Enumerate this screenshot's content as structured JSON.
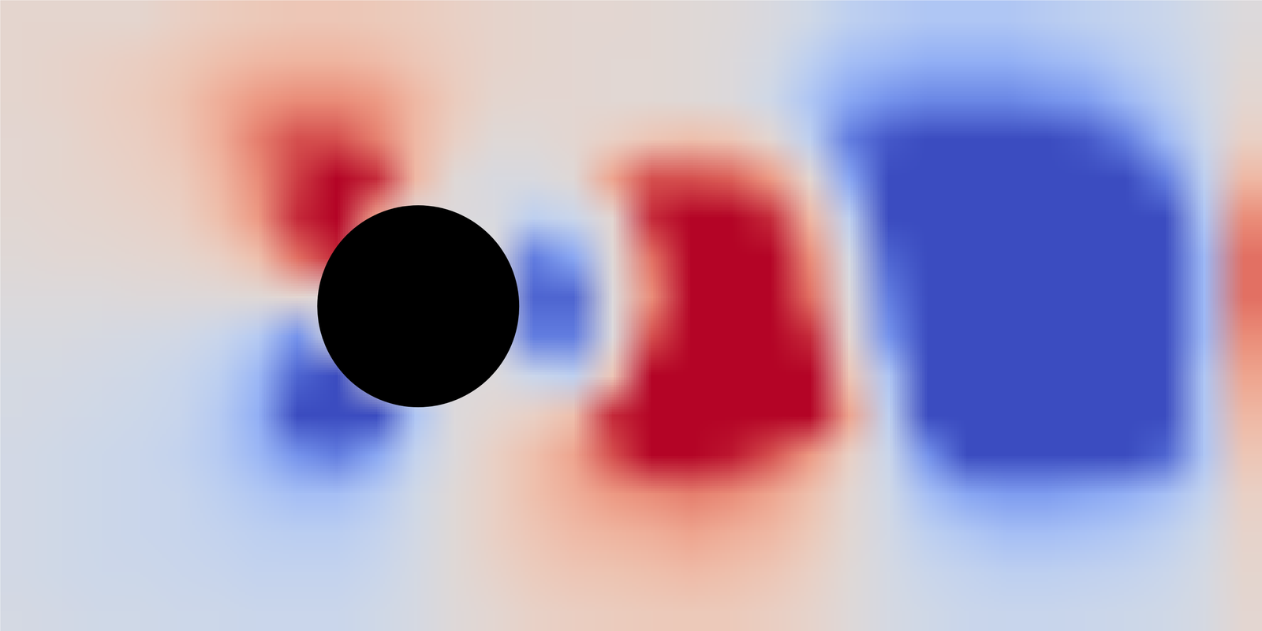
{
  "chart_data": {
    "type": "heatmap",
    "tick_labels": false,
    "xlim": [
      0,
      8
    ],
    "ylim": [
      0,
      4
    ],
    "colors": [
      "#3b4cc0",
      "#7b9ff9",
      "#c0d4f5",
      "#dddddd",
      "#f2cbb7",
      "#ee8468",
      "#b40426"
    ],
    "color_range": [
      -1,
      1
    ],
    "cylinder": {
      "x": 2.65,
      "y": 2.06,
      "radius": 0.64,
      "color": "#000000"
    },
    "cells": [
      [
        0.12,
        0.12,
        0.12,
        0.12,
        0.2,
        0.25,
        0.28,
        0.3,
        0.3,
        0.28,
        0.25,
        0.2,
        0.15,
        0.12,
        0.1,
        0.1,
        0.08,
        0.05,
        0.02,
        -0.05,
        -0.15,
        -0.3,
        -0.35,
        -0.4,
        -0.4,
        -0.4,
        -0.35,
        -0.3,
        -0.25,
        -0.2,
        -0.1,
        0
      ],
      [
        0.12,
        0.15,
        0.18,
        0.22,
        0.28,
        0.35,
        0.4,
        0.42,
        0.42,
        0.38,
        0.3,
        0.22,
        0.15,
        0.12,
        0.1,
        0.08,
        0.08,
        0.05,
        0,
        -0.1,
        -0.3,
        -0.45,
        -0.5,
        -0.55,
        -0.55,
        -0.55,
        -0.5,
        -0.45,
        -0.35,
        -0.25,
        -0.12,
        0.05
      ],
      [
        0.12,
        0.15,
        0.2,
        0.25,
        0.32,
        0.45,
        0.55,
        0.6,
        0.6,
        0.55,
        0.4,
        0.25,
        0.12,
        0.1,
        0.1,
        0.08,
        0.08,
        0.05,
        0,
        -0.15,
        -0.4,
        -0.6,
        -0.7,
        -0.75,
        -0.75,
        -0.75,
        -0.7,
        -0.65,
        -0.5,
        -0.35,
        -0.15,
        0.1
      ],
      [
        0.1,
        0.12,
        0.18,
        0.22,
        0.3,
        0.45,
        0.65,
        0.8,
        0.8,
        0.65,
        0.4,
        0.2,
        0.05,
        0.05,
        0.1,
        0.2,
        0.3,
        0.35,
        0.3,
        0.1,
        -0.3,
        -0.8,
        -0.95,
        -1,
        -1,
        -1,
        -1,
        -0.95,
        -0.8,
        -0.5,
        -0.2,
        0.2
      ],
      [
        0.1,
        0.12,
        0.15,
        0.2,
        0.25,
        0.4,
        0.6,
        0.85,
        1.1,
        0.9,
        0.4,
        0.05,
        -0.05,
        -0.05,
        0.05,
        0.5,
        0.8,
        0.8,
        0.75,
        0.55,
        0.1,
        -0.6,
        -1,
        -1.1,
        -1.1,
        -1.1,
        -1.1,
        -1.1,
        -1,
        -0.8,
        -0.3,
        0.4
      ],
      [
        0.08,
        0.1,
        0.12,
        0.15,
        0.2,
        0.35,
        0.55,
        0.9,
        1.2,
        0.5,
        0,
        0,
        -0.05,
        -0.3,
        -0.2,
        0.1,
        0.9,
        1.2,
        1.2,
        0.9,
        0.4,
        -0.3,
        -1,
        -1.1,
        -1.2,
        -1.2,
        -1.2,
        -1.1,
        -1.1,
        -1,
        -0.4,
        0.6
      ],
      [
        0.05,
        0.07,
        0.08,
        0.1,
        0.12,
        0.2,
        0.35,
        0.7,
        0.9,
        0,
        0,
        0,
        0,
        -0.8,
        -0.6,
        0.05,
        0.7,
        1.2,
        1.2,
        1.1,
        0.6,
        -0.1,
        -0.9,
        -1.2,
        -1.2,
        -1.2,
        -1.2,
        -1.2,
        -1.2,
        -1.1,
        -0.5,
        0.7
      ],
      [
        0,
        0,
        0,
        0.02,
        0.02,
        0.03,
        0.05,
        0.1,
        0,
        0,
        0,
        0,
        0,
        -0.9,
        -0.9,
        0,
        0.6,
        1.2,
        1.2,
        1.2,
        0.7,
        0,
        -0.8,
        -1.2,
        -1.2,
        -1.2,
        -1.2,
        -1.2,
        -1.2,
        -1.1,
        -0.5,
        0.7
      ],
      [
        -0.05,
        -0.05,
        -0.07,
        -0.1,
        -0.12,
        -0.2,
        -0.35,
        -0.7,
        0,
        0,
        0,
        0,
        0,
        -0.8,
        -0.8,
        0,
        0.8,
        1.2,
        1.2,
        1.2,
        0.9,
        0.1,
        -0.7,
        -1.2,
        -1.2,
        -1.2,
        -1.2,
        -1.2,
        -1.2,
        -1.1,
        -0.5,
        0.6
      ],
      [
        -0.08,
        -0.1,
        -0.12,
        -0.15,
        -0.2,
        -0.3,
        -0.5,
        -0.9,
        -1,
        0,
        0,
        0,
        0,
        -0.2,
        -0.3,
        0.3,
        1,
        1.2,
        1.2,
        1.2,
        1.2,
        0.3,
        -0.4,
        -1.2,
        -1.2,
        -1.2,
        -1.2,
        -1.2,
        -1.2,
        -1.1,
        -0.4,
        0.5
      ],
      [
        -0.1,
        -0.12,
        -0.15,
        -0.18,
        -0.22,
        -0.35,
        -0.55,
        -1,
        -1.1,
        -1,
        -0.4,
        0,
        0.1,
        0.2,
        0.35,
        0.9,
        1.2,
        1.2,
        1.2,
        1.2,
        1.2,
        0.5,
        -0.3,
        -1.1,
        -1.2,
        -1.2,
        -1.2,
        -1.2,
        -1.2,
        -1,
        -0.4,
        0.4
      ],
      [
        -0.12,
        -0.15,
        -0.18,
        -0.2,
        -0.25,
        -0.35,
        -0.5,
        -0.7,
        -0.8,
        -0.6,
        -0.25,
        0,
        0.2,
        0.35,
        0.5,
        0.8,
        1,
        1.05,
        0.95,
        0.8,
        0.55,
        0.2,
        -0.2,
        -0.7,
        -1,
        -1.1,
        -1.1,
        -1.1,
        -1,
        -0.9,
        -0.4,
        0.3
      ],
      [
        -0.12,
        -0.15,
        -0.18,
        -0.2,
        -0.22,
        -0.3,
        -0.38,
        -0.45,
        -0.45,
        -0.35,
        -0.15,
        0.05,
        0.2,
        0.35,
        0.45,
        0.55,
        0.6,
        0.65,
        0.6,
        0.5,
        0.35,
        0.1,
        -0.15,
        -0.45,
        -0.6,
        -0.65,
        -0.65,
        -0.6,
        -0.55,
        -0.45,
        -0.25,
        0.2
      ],
      [
        -0.12,
        -0.15,
        -0.18,
        -0.2,
        -0.22,
        -0.25,
        -0.3,
        -0.32,
        -0.32,
        -0.25,
        -0.12,
        0.05,
        0.2,
        0.3,
        0.38,
        0.42,
        0.45,
        0.5,
        0.45,
        0.4,
        0.28,
        0.08,
        -0.12,
        -0.3,
        -0.38,
        -0.45,
        -0.45,
        -0.42,
        -0.38,
        -0.3,
        -0.15,
        0.15
      ],
      [
        -0.12,
        -0.15,
        -0.17,
        -0.18,
        -0.2,
        -0.22,
        -0.25,
        -0.25,
        -0.25,
        -0.2,
        -0.1,
        0.05,
        0.15,
        0.25,
        0.3,
        0.32,
        0.35,
        0.38,
        0.35,
        0.3,
        0.2,
        0.05,
        -0.1,
        -0.2,
        -0.25,
        -0.3,
        -0.3,
        -0.28,
        -0.25,
        -0.2,
        -0.1,
        0.12
      ],
      [
        -0.1,
        -0.12,
        -0.15,
        -0.15,
        -0.17,
        -0.18,
        -0.2,
        -0.2,
        -0.2,
        -0.15,
        -0.08,
        0.03,
        0.1,
        0.18,
        0.22,
        0.25,
        0.27,
        0.28,
        0.27,
        0.22,
        0.15,
        0.03,
        -0.08,
        -0.15,
        -0.2,
        -0.22,
        -0.22,
        -0.2,
        -0.18,
        -0.15,
        -0.08,
        0.1
      ]
    ]
  }
}
